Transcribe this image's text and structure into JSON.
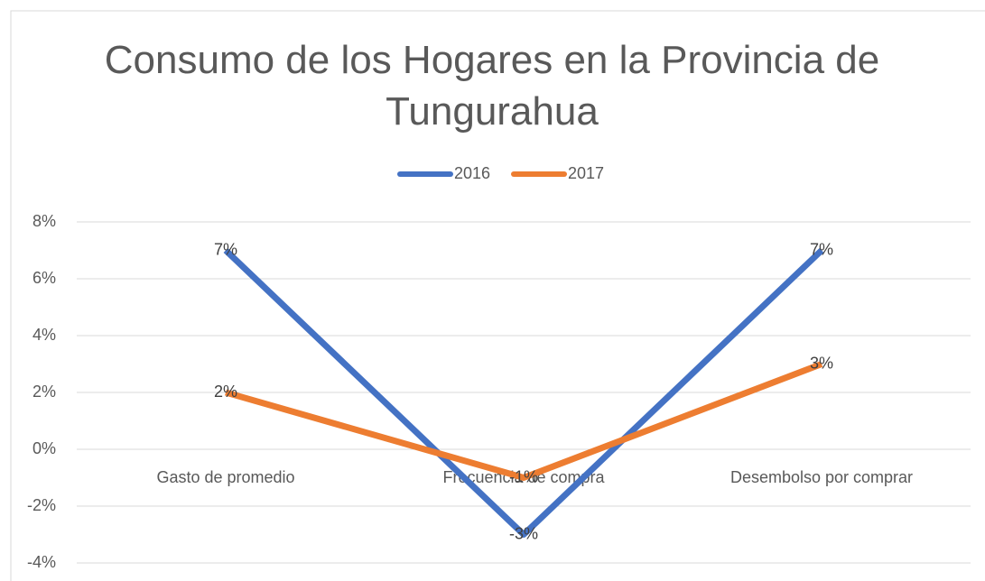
{
  "chart_data": {
    "type": "line",
    "title": "Consumo de los Hogares en la Provincia de Tungurahua",
    "categories": [
      "Gasto de promedio",
      "Frecuencia de compra",
      "Desembolso por comprar"
    ],
    "series": [
      {
        "name": "2016",
        "color": "#4472c4",
        "values": [
          7,
          -3,
          7
        ],
        "value_labels": [
          "7%",
          "-3%",
          "7%"
        ]
      },
      {
        "name": "2017",
        "color": "#ed7d31",
        "values": [
          2,
          -1,
          3
        ],
        "value_labels": [
          "2%",
          "-1%",
          "3%"
        ]
      }
    ],
    "ylim": [
      -4,
      8
    ],
    "yticks": [
      {
        "value": -4,
        "label": "-4%"
      },
      {
        "value": -2,
        "label": "-2%"
      },
      {
        "value": 0,
        "label": "0%"
      },
      {
        "value": 2,
        "label": "2%"
      },
      {
        "value": 4,
        "label": "4%"
      },
      {
        "value": 6,
        "label": "6%"
      },
      {
        "value": 8,
        "label": "8%"
      }
    ],
    "grid": true,
    "legend": "top"
  }
}
